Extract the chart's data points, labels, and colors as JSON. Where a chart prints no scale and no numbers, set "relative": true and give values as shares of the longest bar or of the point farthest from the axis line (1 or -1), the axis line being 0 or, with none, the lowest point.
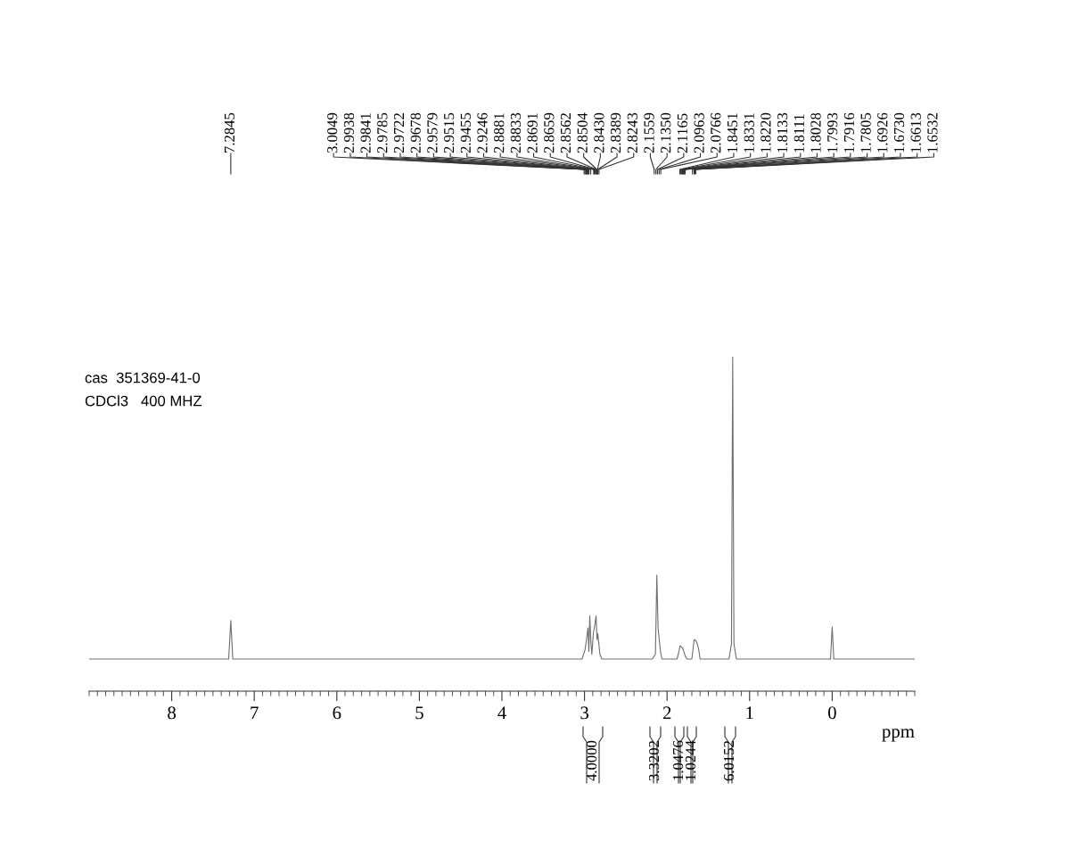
{
  "chart_data": {
    "type": "line",
    "relative": true,
    "xlabel": "ppm",
    "xlim": [
      9,
      -1
    ],
    "xticks": [
      8,
      7,
      6,
      5,
      4,
      3,
      2,
      1,
      0
    ],
    "grid": false,
    "legend": false,
    "marker": "none",
    "line_style": "solid",
    "x": [
      9.0,
      7.31,
      7.2845,
      7.26,
      3.03,
      2.994,
      2.976,
      2.958,
      2.947,
      2.936,
      2.922,
      2.911,
      2.893,
      2.875,
      2.86,
      2.849,
      2.839,
      2.828,
      2.813,
      2.79,
      2.18,
      2.141,
      2.124,
      2.109,
      2.095,
      2.08,
      2.062,
      1.88,
      1.864,
      1.842,
      1.82,
      1.802,
      1.78,
      1.76,
      1.7,
      1.672,
      1.654,
      1.639,
      1.618,
      1.6,
      1.25,
      1.22,
      1.205,
      1.19,
      1.16,
      0.02,
      0.0,
      -0.02,
      -1.0
    ],
    "series": [
      {
        "color": "#6e6e6e",
        "values": [
          0.096,
          0.096,
          0.211,
          0.096,
          0.096,
          0.123,
          0.154,
          0.189,
          0.119,
          0.225,
          0.145,
          0.11,
          0.172,
          0.198,
          0.225,
          0.154,
          0.172,
          0.145,
          0.11,
          0.096,
          0.096,
          0.11,
          0.347,
          0.189,
          0.154,
          0.119,
          0.096,
          0.096,
          0.11,
          0.136,
          0.131,
          0.123,
          0.105,
          0.096,
          0.096,
          0.154,
          0.152,
          0.145,
          0.127,
          0.096,
          0.096,
          0.141,
          1,
          0.141,
          0.096,
          0.096,
          0.192,
          0.096,
          0.096
        ]
      }
    ],
    "annotations": [
      "cas  351369-41-0",
      "CDCl3   400 MHZ",
      {
        "text": "7.2845",
        "x": 7.2845
      },
      {
        "text": "3.0049",
        "x": 3.0049
      },
      {
        "text": "2.9938",
        "x": 2.9938
      },
      {
        "text": "2.9841",
        "x": 2.9841
      },
      {
        "text": "2.9785",
        "x": 2.9785
      },
      {
        "text": "2.9722",
        "x": 2.9722
      },
      {
        "text": "2.9678",
        "x": 2.9678
      },
      {
        "text": "2.9579",
        "x": 2.9579
      },
      {
        "text": "2.9515",
        "x": 2.9515
      },
      {
        "text": "2.9455",
        "x": 2.9455
      },
      {
        "text": "2.9246",
        "x": 2.9246
      },
      {
        "text": "2.8881",
        "x": 2.8881
      },
      {
        "text": "2.8833",
        "x": 2.8833
      },
      {
        "text": "2.8691",
        "x": 2.8691
      },
      {
        "text": "2.8659",
        "x": 2.8659
      },
      {
        "text": "2.8562",
        "x": 2.8562
      },
      {
        "text": "2.8504",
        "x": 2.8504
      },
      {
        "text": "2.8430",
        "x": 2.843
      },
      {
        "text": "2.8389",
        "x": 2.8389
      },
      {
        "text": "2.8243",
        "x": 2.8243
      },
      {
        "text": "2.1559",
        "x": 2.1559
      },
      {
        "text": "2.1350",
        "x": 2.135
      },
      {
        "text": "2.1165",
        "x": 2.1165
      },
      {
        "text": "2.0963",
        "x": 2.0963
      },
      {
        "text": "2.0766",
        "x": 2.0766
      },
      {
        "text": "1.8451",
        "x": 1.8451
      },
      {
        "text": "1.8331",
        "x": 1.8331
      },
      {
        "text": "1.8220",
        "x": 1.822
      },
      {
        "text": "1.8133",
        "x": 1.8133
      },
      {
        "text": "1.8111",
        "x": 1.8111
      },
      {
        "text": "1.8028",
        "x": 1.8028
      },
      {
        "text": "1.7993",
        "x": 1.7993
      },
      {
        "text": "1.7916",
        "x": 1.7916
      },
      {
        "text": "1.7805",
        "x": 1.7805
      },
      {
        "text": "1.6926",
        "x": 1.6926
      },
      {
        "text": "1.6730",
        "x": 1.673
      },
      {
        "text": "1.6613",
        "x": 1.6613
      },
      {
        "text": "1.6532",
        "x": 1.6532
      },
      "4.0000",
      "3.3202",
      "1.0476",
      "1.0244",
      "6.0152"
    ]
  }
}
